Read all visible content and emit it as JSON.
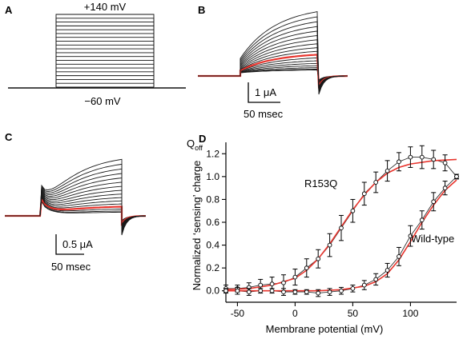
{
  "panels": {
    "A": {
      "letter": "A",
      "top_label": "+140 mV",
      "bottom_label": "−60 mV"
    },
    "B": {
      "letter": "B",
      "scale_current": "1 μA",
      "scale_time": "50 msec"
    },
    "C": {
      "letter": "C",
      "scale_current": "0.5 μA",
      "scale_time": "50 msec"
    },
    "D": {
      "letter": "D"
    }
  },
  "colors": {
    "trace": "#1a1a1a",
    "highlight": "#e8352e",
    "fit": "#e8352e"
  },
  "chart_data": {
    "type": "line",
    "title": "",
    "xlabel": "Membrane potential (mV)",
    "ylabel": "Normalized ‘sensing’ charge",
    "ylabel_prefix": "Q",
    "ylabel_subscript": "off",
    "xlim": [
      -60,
      140
    ],
    "ylim": [
      -0.1,
      1.3
    ],
    "x_ticks": [
      -50,
      0,
      50,
      100
    ],
    "y_ticks": [
      "0.0",
      "0.2",
      "0.4",
      "0.6",
      "0.8",
      "1.0",
      "1.2"
    ],
    "y_tick_values": [
      0,
      0.2,
      0.4,
      0.6,
      0.8,
      1.0,
      1.2
    ],
    "grid": false,
    "series": [
      {
        "name": "R153Q",
        "x": [
          -60,
          -50,
          -40,
          -30,
          -20,
          -10,
          0,
          10,
          20,
          30,
          40,
          50,
          60,
          70,
          80,
          90,
          100,
          110,
          120,
          130,
          140
        ],
        "y": [
          0.02,
          0.02,
          0.03,
          0.05,
          0.06,
          0.07,
          0.12,
          0.2,
          0.28,
          0.4,
          0.55,
          0.7,
          0.85,
          0.95,
          1.05,
          1.13,
          1.17,
          1.17,
          1.15,
          1.12,
          1.0
        ],
        "err": [
          0.03,
          0.03,
          0.04,
          0.05,
          0.06,
          0.07,
          0.07,
          0.08,
          0.08,
          0.1,
          0.11,
          0.1,
          0.1,
          0.09,
          0.09,
          0.08,
          0.09,
          0.1,
          0.08,
          0.07,
          0.02
        ],
        "fit_x": [
          -60,
          -40,
          -20,
          0,
          10,
          20,
          30,
          40,
          50,
          60,
          70,
          80,
          90,
          100,
          120,
          140
        ],
        "fit_y": [
          0.01,
          0.02,
          0.05,
          0.11,
          0.18,
          0.28,
          0.41,
          0.56,
          0.71,
          0.84,
          0.95,
          1.03,
          1.08,
          1.11,
          1.14,
          1.15
        ]
      },
      {
        "name": "Wild-type",
        "x": [
          -60,
          -50,
          -40,
          -30,
          -20,
          -10,
          0,
          10,
          20,
          30,
          40,
          50,
          60,
          70,
          80,
          90,
          100,
          110,
          120,
          130,
          140
        ],
        "y": [
          0.0,
          0.0,
          -0.01,
          0.0,
          0.0,
          -0.01,
          -0.01,
          -0.01,
          -0.02,
          -0.01,
          0.0,
          0.02,
          0.05,
          0.1,
          0.18,
          0.3,
          0.48,
          0.62,
          0.78,
          0.9,
          1.0
        ],
        "err": [
          0.02,
          0.03,
          0.03,
          0.02,
          0.02,
          0.03,
          0.02,
          0.02,
          0.03,
          0.03,
          0.03,
          0.03,
          0.04,
          0.05,
          0.06,
          0.08,
          0.09,
          0.08,
          0.08,
          0.06,
          0.02
        ],
        "fit_x": [
          -60,
          -20,
          20,
          40,
          60,
          70,
          80,
          90,
          100,
          110,
          120,
          130,
          140
        ],
        "fit_y": [
          0.0,
          0.0,
          0.0,
          0.01,
          0.04,
          0.08,
          0.15,
          0.27,
          0.43,
          0.6,
          0.75,
          0.88,
          0.97
        ]
      }
    ]
  }
}
